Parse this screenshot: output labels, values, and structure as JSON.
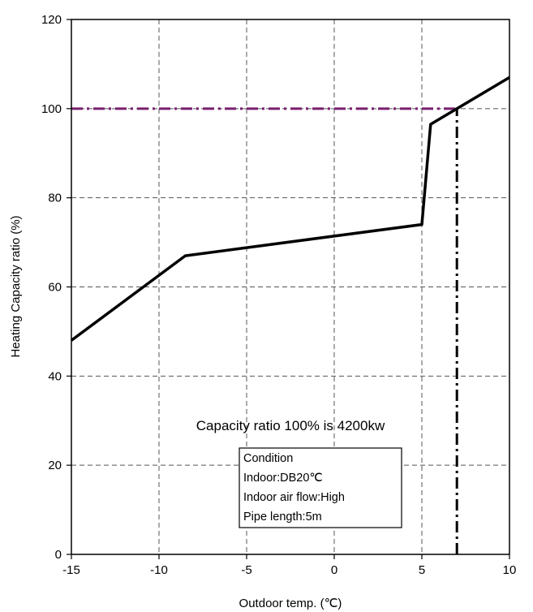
{
  "chart_data": {
    "type": "line",
    "title": "",
    "xlabel": "Outdoor temp. (℃)",
    "ylabel": "Heating Capacity ratio (%)",
    "xlim": [
      -15,
      10
    ],
    "ylim": [
      0,
      120
    ],
    "x_ticks": [
      -15,
      -10,
      -5,
      0,
      5,
      10
    ],
    "y_ticks": [
      0,
      20,
      40,
      60,
      80,
      100,
      120
    ],
    "grid": true,
    "series": [
      {
        "color": "#000000",
        "points": [
          [
            -15,
            48
          ],
          [
            -8.5,
            67
          ],
          [
            5,
            74
          ],
          [
            5.5,
            96.5
          ],
          [
            10,
            107
          ]
        ]
      }
    ],
    "reference_lines": [
      {
        "orientation": "horizontal",
        "y": 100,
        "x_range": [
          -15,
          7
        ],
        "style": "dash-dot",
        "color": "#7a1f6e"
      },
      {
        "orientation": "vertical",
        "x": 7,
        "y_range": [
          0,
          100
        ],
        "style": "dash-dot",
        "color": "#000000"
      }
    ],
    "annotation": "Capacity ratio 100% is 4200kw",
    "condition_box": {
      "lines": [
        "Condition",
        "Indoor:DB20℃",
        "Indoor air flow:High",
        "Pipe length:5m"
      ]
    }
  }
}
